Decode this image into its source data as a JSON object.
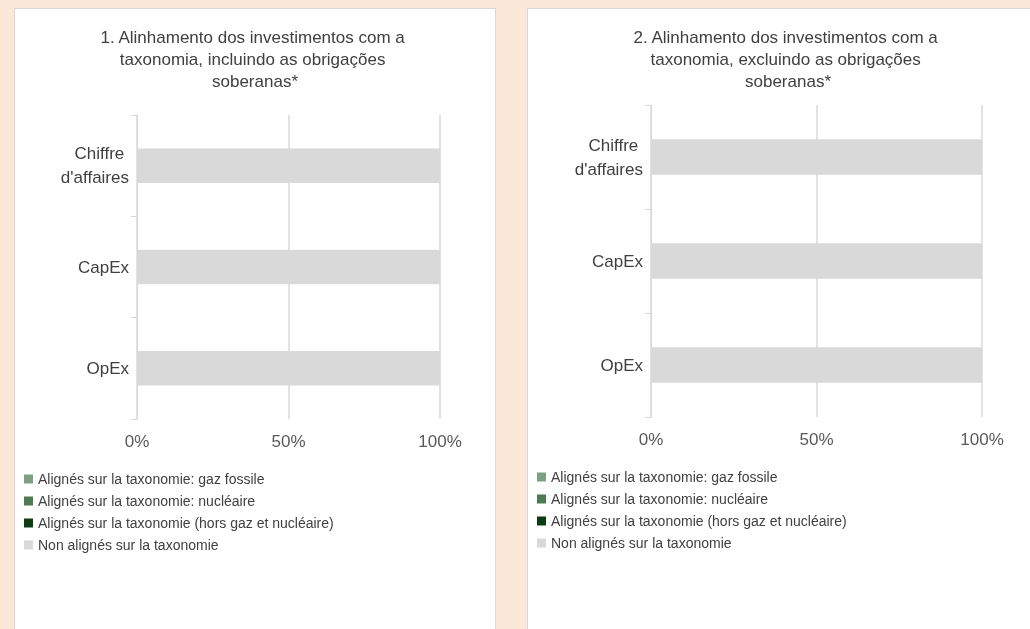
{
  "chart_data": [
    {
      "type": "bar",
      "orientation": "horizontal",
      "stacked": true,
      "title": "1. Alinhamento dos investimentos com a taxonomia, incluindo as obrigações soberanas*",
      "categories": [
        "Chiffre d'affaires",
        "CapEx",
        "OpEx"
      ],
      "series": [
        {
          "name": "Alignés sur la taxonomie: gaz fossile",
          "color": "#7f9f83",
          "values": [
            0,
            0,
            0
          ]
        },
        {
          "name": "Alignés sur la taxonomie: nucléaire",
          "color": "#4e7a51",
          "values": [
            0,
            0,
            0
          ]
        },
        {
          "name": "Alignés sur la taxonomie (hors gaz et nucléaire)",
          "color": "#0d3b12",
          "values": [
            0,
            0,
            0
          ]
        },
        {
          "name": "Non alignés sur la taxonomie",
          "color": "#d9d9d9",
          "values": [
            100,
            100,
            100
          ]
        }
      ],
      "xlim": [
        0,
        100
      ],
      "xticks": [
        {
          "value": 0,
          "label": "0%"
        },
        {
          "value": 50,
          "label": "50%"
        },
        {
          "value": 100,
          "label": "100%"
        }
      ],
      "grid": "x",
      "legend": "bottom"
    },
    {
      "type": "bar",
      "orientation": "horizontal",
      "stacked": true,
      "title": "2. Alinhamento dos investimentos com a taxonomia, excluindo as obrigações soberanas*",
      "categories": [
        "Chiffre d'affaires",
        "CapEx",
        "OpEx"
      ],
      "series": [
        {
          "name": "Alignés sur la taxonomie: gaz fossile",
          "color": "#7f9f83",
          "values": [
            0,
            0,
            0
          ]
        },
        {
          "name": "Alignés sur la taxonomie: nucléaire",
          "color": "#4e7a51",
          "values": [
            0,
            0,
            0
          ]
        },
        {
          "name": "Alignés sur la taxonomie (hors gaz et nucléaire)",
          "color": "#0d3b12",
          "values": [
            0,
            0,
            0
          ]
        },
        {
          "name": "Non alignés sur la taxonomie",
          "color": "#d9d9d9",
          "values": [
            100,
            100,
            100
          ]
        }
      ],
      "xlim": [
        0,
        100
      ],
      "xticks": [
        {
          "value": 0,
          "label": "0%"
        },
        {
          "value": 50,
          "label": "50%"
        },
        {
          "value": 100,
          "label": "100%"
        }
      ],
      "grid": "x",
      "legend": "bottom"
    }
  ]
}
